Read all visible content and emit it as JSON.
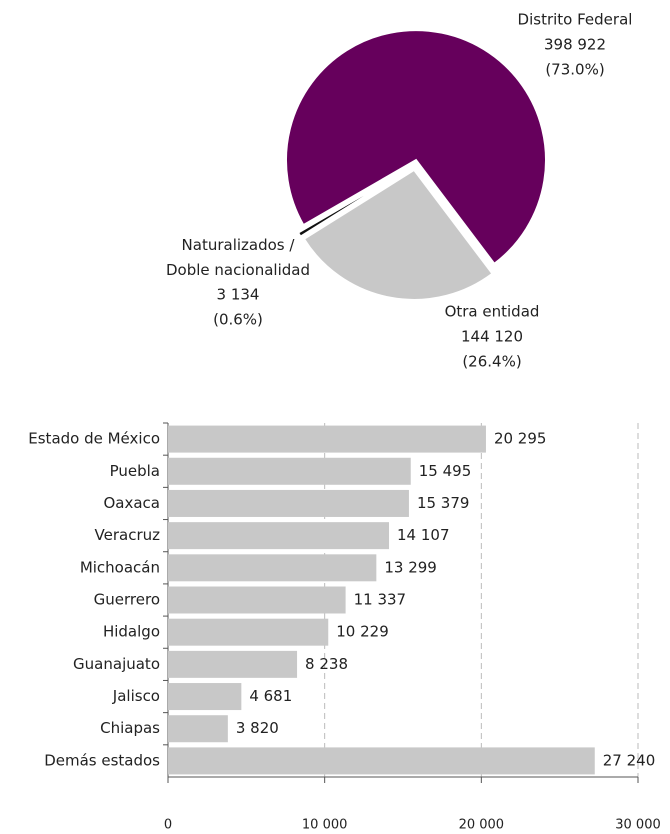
{
  "chart_data": [
    {
      "type": "pie",
      "categories": [
        "Distrito Federal",
        "Otra entidad",
        "Naturalizados /\nDoble nacionalidad"
      ],
      "values": [
        398922,
        144120,
        3134
      ],
      "value_labels": [
        "398 922",
        "144 120",
        "3 134"
      ],
      "percents": [
        73.0,
        26.4,
        0.6
      ],
      "percent_labels": [
        "(73.0%)",
        "(26.4%)",
        "(0.6%)"
      ],
      "colors": [
        "#66005c",
        "#c8c8c8",
        "#111111"
      ]
    },
    {
      "type": "bar",
      "orientation": "horizontal",
      "categories": [
        "Estado de México",
        "Puebla",
        "Oaxaca",
        "Veracruz",
        "Michoacán",
        "Guerrero",
        "Hidalgo",
        "Guanajuato",
        "Jalisco",
        "Chiapas",
        "Demás estados"
      ],
      "values": [
        20295,
        15495,
        15379,
        14107,
        13299,
        11337,
        10229,
        8238,
        4681,
        3820,
        27240
      ],
      "value_labels": [
        "20 295",
        "15 495",
        "15 379",
        "14 107",
        "13 299",
        "11 337",
        "10 229",
        "8 238",
        "4 681",
        "3 820",
        "27 240"
      ],
      "color": "#c8c8c8",
      "xlim": [
        0,
        30000
      ],
      "xticks": [
        0,
        {
          "value": 10000,
          "label": "10 000"
        },
        {
          "value": 20000,
          "label": "20 000"
        },
        {
          "value": 30000,
          "label": "30 000"
        }
      ],
      "grid": true
    }
  ]
}
